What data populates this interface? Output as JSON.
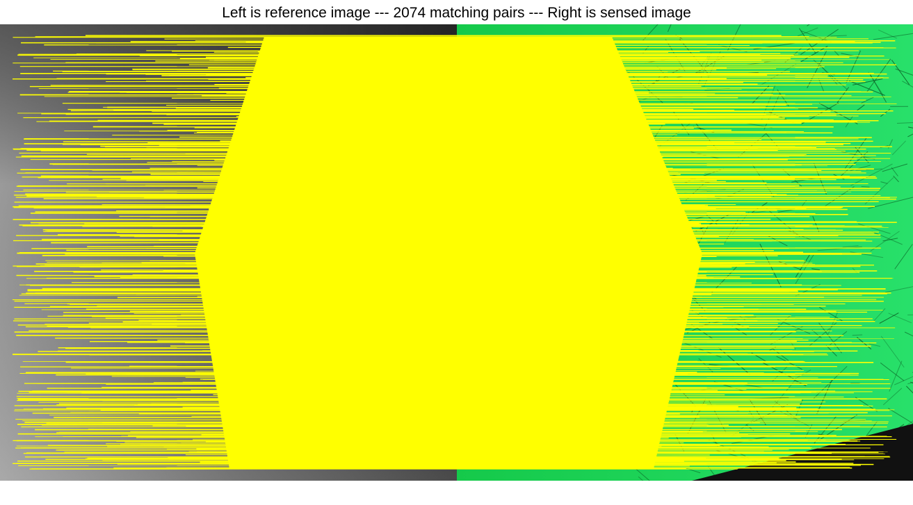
{
  "title": "Left is reference image --- 2074 matching pairs --- Right is sensed image",
  "colors": {
    "match_line": "#ffff00",
    "sensed_image_tint": "#1fe05a",
    "reference_image_tint": "#8c8c8c",
    "background": "#ffffff"
  }
}
